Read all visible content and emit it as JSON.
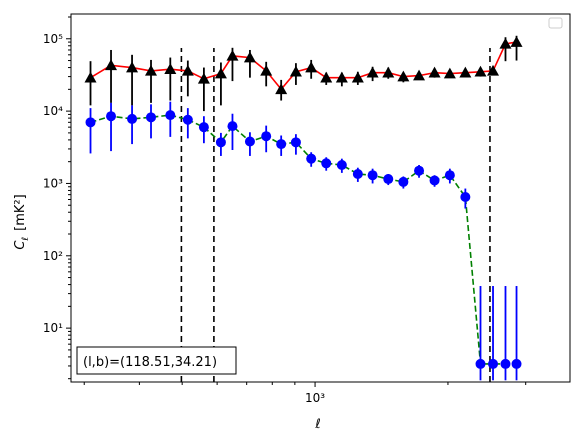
{
  "chart_data": {
    "type": "line",
    "title": "",
    "xlabel": "ℓ",
    "ylabel_main": "C",
    "ylabel_sub": "ℓ",
    "ylabel_unit": "[mK²]",
    "xscale": "log",
    "yscale": "log",
    "xlim": [
      280,
      3780
    ],
    "ylim": [
      1.8,
      220000
    ],
    "grid": false,
    "legend": "top-right (empty)",
    "annotation": "(l,b)=(118.51,34.21)",
    "x_tick_labels": [
      {
        "value": 1000,
        "label": "10³"
      }
    ],
    "y_tick_labels": [
      {
        "value": 10,
        "label": "10¹"
      },
      {
        "value": 100,
        "label": "10²"
      },
      {
        "value": 1000,
        "label": "10³"
      },
      {
        "value": 10000,
        "label": "10⁴"
      },
      {
        "value": 100000,
        "label": "10⁵"
      }
    ],
    "vlines": [
      498,
      590,
      2490
    ],
    "colors": {
      "upper_line": "#ff0000",
      "upper_marker": "#000000",
      "lower_line": "#008000",
      "lower_marker": "#0000ff",
      "vline": "#000000"
    },
    "series": [
      {
        "marker": "triangle",
        "x": [
          310,
          345,
          385,
          425,
          470,
          515,
          560,
          612,
          650,
          712,
          775,
          838,
          905,
          980,
          1060,
          1150,
          1250,
          1350,
          1465,
          1585,
          1720,
          1865,
          2020,
          2190,
          2370,
          2530,
          2700,
          2860
        ],
        "y": [
          29000,
          43000,
          40000,
          36000,
          38000,
          36000,
          28000,
          33000,
          58000,
          55000,
          36000,
          20000,
          35000,
          40000,
          29000,
          29000,
          29000,
          34000,
          34000,
          30000,
          31000,
          34000,
          33000,
          34000,
          35000,
          36000,
          85000,
          90000
        ],
        "err_low": [
          17000,
          30000,
          28000,
          23000,
          24000,
          20000,
          18000,
          21000,
          32000,
          26000,
          14000,
          6000,
          12000,
          12000,
          6000,
          7000,
          6000,
          8000,
          6000,
          5000,
          4000,
          5000,
          4000,
          4000,
          5000,
          4000,
          36000,
          40000
        ],
        "err_high": [
          20000,
          27000,
          20000,
          15000,
          17000,
          14000,
          12000,
          14000,
          17000,
          15000,
          12000,
          7000,
          11000,
          11000,
          5000,
          5000,
          6000,
          7000,
          6000,
          4000,
          4000,
          5000,
          4000,
          4000,
          5000,
          4000,
          20000,
          20000
        ]
      },
      {
        "marker": "circle",
        "x": [
          310,
          345,
          385,
          425,
          470,
          515,
          560,
          612,
          650,
          712,
          775,
          838,
          905,
          980,
          1060,
          1150,
          1250,
          1350,
          1465,
          1585,
          1720,
          1865,
          2020,
          2190,
          2370,
          2530,
          2700,
          2860
        ],
        "y": [
          7000,
          8500,
          7800,
          8200,
          8800,
          7600,
          6000,
          3700,
          6200,
          3800,
          4500,
          3500,
          3700,
          2200,
          1900,
          1800,
          1350,
          1300,
          1150,
          1050,
          1500,
          1100,
          1300,
          650,
          3.2,
          3.2,
          3.2,
          3.2
        ],
        "err_low": [
          4400,
          5700,
          4300,
          4000,
          4400,
          3400,
          2400,
          1300,
          3300,
          1400,
          1800,
          1100,
          1200,
          500,
          400,
          400,
          300,
          300,
          200,
          200,
          300,
          200,
          300,
          200,
          1.3,
          1.3,
          1.3,
          1.3
        ],
        "err_high": [
          4000,
          4500,
          4200,
          4200,
          4700,
          3400,
          2500,
          1300,
          3000,
          1300,
          1800,
          1100,
          1100,
          500,
          400,
          400,
          300,
          300,
          200,
          200,
          300,
          200,
          300,
          200,
          35,
          35,
          35,
          35
        ]
      }
    ]
  }
}
